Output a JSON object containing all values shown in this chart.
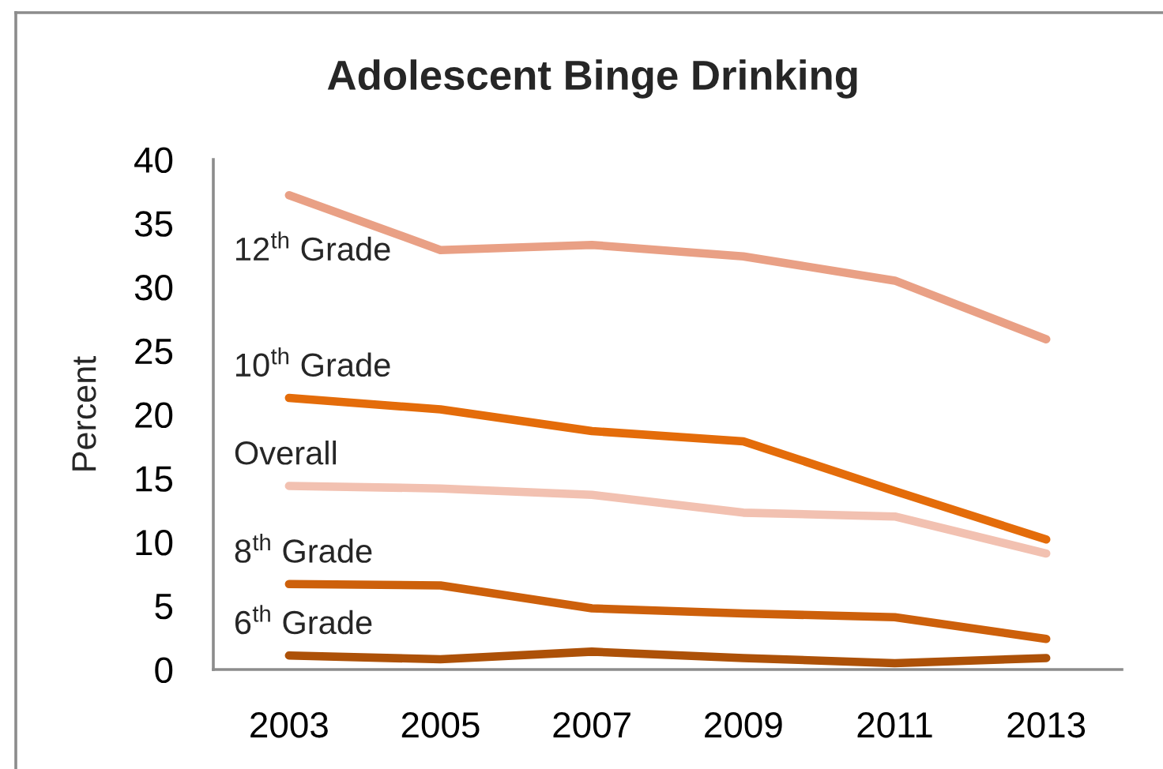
{
  "chart_data": {
    "type": "line",
    "title": "Adolescent Binge Drinking",
    "ylabel": "Percent",
    "categories": [
      "2003",
      "2005",
      "2007",
      "2009",
      "2011",
      "2013"
    ],
    "series": [
      {
        "name": "12$^{th}$ Grade",
        "color": "#e9a085",
        "values": [
          37.2,
          32.9,
          33.3,
          32.4,
          30.5,
          25.9
        ]
      },
      {
        "name": "10$^{th}$ Grade",
        "color": "#e46c0a",
        "values": [
          21.3,
          20.4,
          18.7,
          17.9,
          14.0,
          10.2
        ]
      },
      {
        "name": "Overall",
        "color": "#f2c1b1",
        "values": [
          14.4,
          14.2,
          13.7,
          12.3,
          12.0,
          9.1
        ]
      },
      {
        "name": "8$^{th}$ Grade",
        "color": "#cd600b",
        "values": [
          6.7,
          6.6,
          4.8,
          4.4,
          4.1,
          2.4
        ]
      },
      {
        "name": "6$^{th}$ Grade",
        "color": "#ad5108",
        "values": [
          1.1,
          0.8,
          1.4,
          0.9,
          0.5,
          0.9
        ]
      }
    ],
    "ylim": [
      0,
      40
    ],
    "yticks": [
      0,
      5,
      10,
      15,
      20,
      25,
      30,
      35,
      40
    ],
    "grid": false,
    "legend": false,
    "marker": "none",
    "line_style": "solid"
  }
}
